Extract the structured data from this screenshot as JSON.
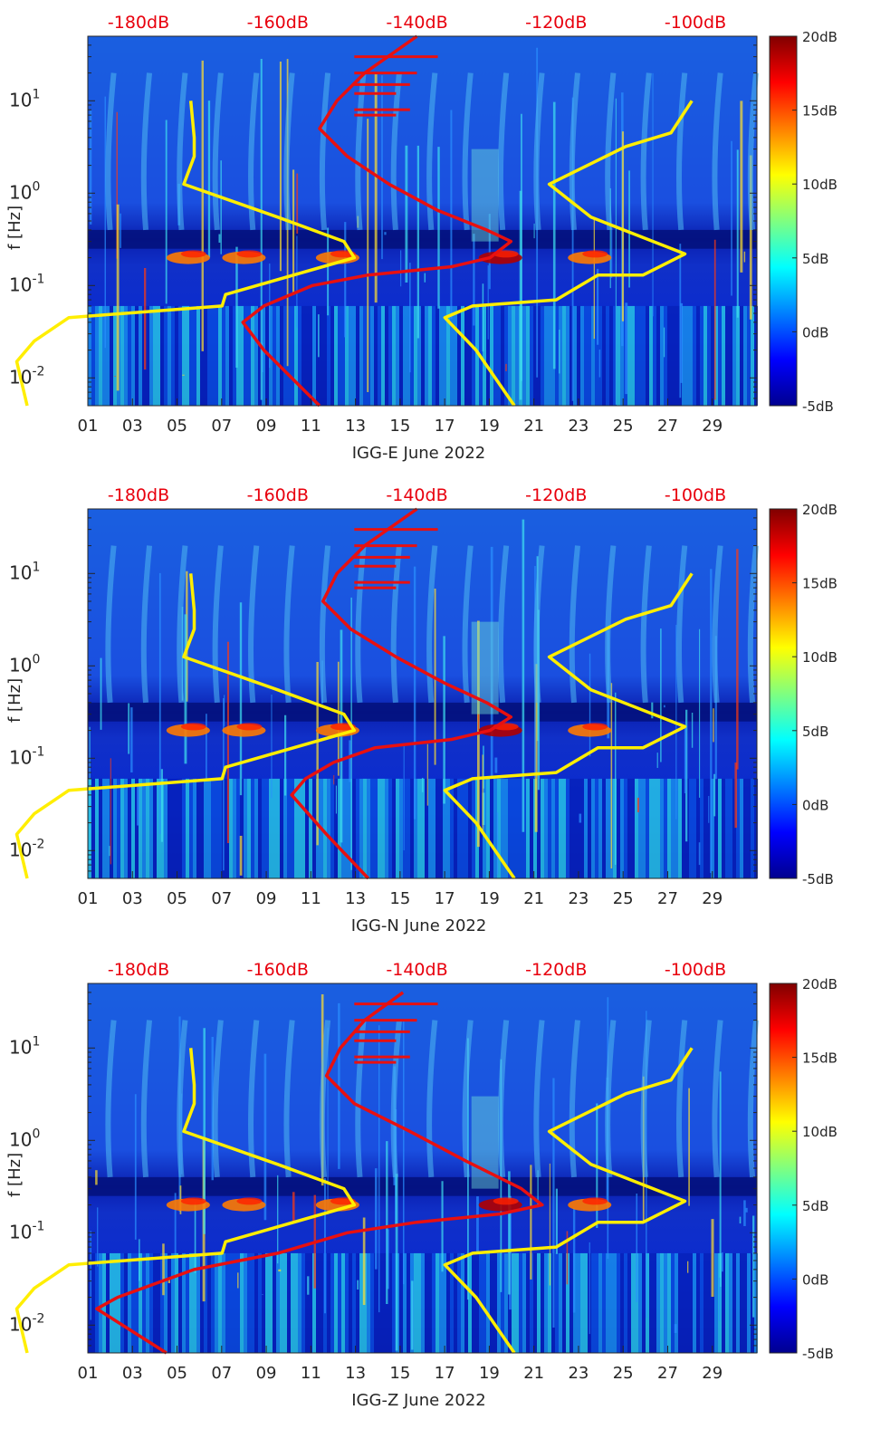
{
  "colors": {
    "yellow_curve": "#ffee00",
    "red_curve": "#e81010",
    "top_label": "#e8000d",
    "spectrogram_low": "#00008f",
    "spectrogram_high": "#800000"
  },
  "chart_data": [
    {
      "type": "heatmap",
      "xlabel": "IGG-E June 2022",
      "ylabel": "f [Hz]",
      "y_scale": "log",
      "xlim": [
        1,
        31
      ],
      "ylim": [
        0.005,
        50
      ],
      "x_ticks": [
        "01",
        "03",
        "05",
        "07",
        "09",
        "11",
        "13",
        "15",
        "17",
        "19",
        "21",
        "23",
        "25",
        "27",
        "29"
      ],
      "y_ticks": [
        "10-2",
        "10-1",
        "100",
        "101"
      ],
      "top_axis_labels": [
        "-180dB",
        "-160dB",
        "-140dB",
        "-120dB",
        "-100dB"
      ],
      "top_axis_db": [
        -180,
        -160,
        -140,
        -120,
        -100
      ],
      "colorbar": {
        "labels": [
          "20dB",
          "15dB",
          "10dB",
          "5dB",
          "0dB",
          "-5dB"
        ],
        "values": [
          20,
          15,
          10,
          5,
          0,
          -5
        ],
        "range": [
          -5,
          20
        ]
      },
      "series": [
        {
          "color": "yellow",
          "axis": "top_db",
          "points": [
            [
              -172.5,
              10
            ],
            [
              -172,
              4
            ],
            [
              -172,
              2.5
            ],
            [
              -173.5,
              1.25
            ],
            [
              -160,
              0.55
            ],
            [
              -150.5,
              0.3
            ],
            [
              -149,
              0.2
            ],
            [
              -167.5,
              0.08
            ],
            [
              -168,
              0.06
            ],
            [
              -190,
              0.045
            ],
            [
              -195,
              0.025
            ],
            [
              -197.5,
              0.015
            ],
            [
              -196,
              0.005
            ]
          ]
        },
        {
          "color": "yellow",
          "axis": "top_db",
          "points": [
            [
              -100.5,
              10
            ],
            [
              -103.5,
              4.5
            ],
            [
              -110,
              3.2
            ],
            [
              -121,
              1.25
            ],
            [
              -115,
              0.55
            ],
            [
              -101.5,
              0.22
            ],
            [
              -107.5,
              0.13
            ],
            [
              -114,
              0.13
            ],
            [
              -120,
              0.07
            ],
            [
              -132,
              0.06
            ],
            [
              -136,
              0.045
            ],
            [
              -131.5,
              0.02
            ],
            [
              -126,
              0.005
            ]
          ]
        },
        {
          "color": "red",
          "axis": "top_db",
          "points": [
            [
              -140,
              50
            ],
            [
              -147.5,
              20
            ],
            [
              -151.5,
              10
            ],
            [
              -154,
              5
            ],
            [
              -150,
              2.5
            ],
            [
              -144,
              1.25
            ],
            [
              -137,
              0.65
            ],
            [
              -130,
              0.4
            ],
            [
              -126.5,
              0.3
            ],
            [
              -129.5,
              0.2
            ],
            [
              -135,
              0.16
            ],
            [
              -147,
              0.13
            ],
            [
              -155,
              0.1
            ],
            [
              -162,
              0.06
            ],
            [
              -165,
              0.04
            ],
            [
              -162,
              0.02
            ],
            [
              -154,
              0.005
            ]
          ]
        }
      ]
    },
    {
      "type": "heatmap",
      "xlabel": "IGG-N June 2022",
      "ylabel": "f [Hz]",
      "y_scale": "log",
      "xlim": [
        1,
        31
      ],
      "ylim": [
        0.005,
        50
      ],
      "x_ticks": [
        "01",
        "03",
        "05",
        "07",
        "09",
        "11",
        "13",
        "15",
        "17",
        "19",
        "21",
        "23",
        "25",
        "27",
        "29"
      ],
      "y_ticks": [
        "10-2",
        "10-1",
        "100",
        "101"
      ],
      "top_axis_labels": [
        "-180dB",
        "-160dB",
        "-140dB",
        "-120dB",
        "-100dB"
      ],
      "top_axis_db": [
        -180,
        -160,
        -140,
        -120,
        -100
      ],
      "colorbar": {
        "labels": [
          "20dB",
          "15dB",
          "10dB",
          "5dB",
          "0dB",
          "-5dB"
        ],
        "values": [
          20,
          15,
          10,
          5,
          0,
          -5
        ],
        "range": [
          -5,
          20
        ]
      },
      "series": [
        {
          "color": "yellow",
          "axis": "top_db",
          "points": [
            [
              -172.5,
              10
            ],
            [
              -172,
              4
            ],
            [
              -172,
              2.5
            ],
            [
              -173.5,
              1.25
            ],
            [
              -160,
              0.55
            ],
            [
              -150.5,
              0.3
            ],
            [
              -149,
              0.2
            ],
            [
              -167.5,
              0.08
            ],
            [
              -168,
              0.06
            ],
            [
              -190,
              0.045
            ],
            [
              -195,
              0.025
            ],
            [
              -197.5,
              0.015
            ],
            [
              -196,
              0.005
            ]
          ]
        },
        {
          "color": "yellow",
          "axis": "top_db",
          "points": [
            [
              -100.5,
              10
            ],
            [
              -103.5,
              4.5
            ],
            [
              -110,
              3.2
            ],
            [
              -121,
              1.25
            ],
            [
              -115,
              0.55
            ],
            [
              -101.5,
              0.22
            ],
            [
              -107.5,
              0.13
            ],
            [
              -114,
              0.13
            ],
            [
              -120,
              0.07
            ],
            [
              -132,
              0.06
            ],
            [
              -136,
              0.045
            ],
            [
              -131.5,
              0.02
            ],
            [
              -126,
              0.005
            ]
          ]
        },
        {
          "color": "red",
          "axis": "top_db",
          "points": [
            [
              -140,
              50
            ],
            [
              -147.5,
              20
            ],
            [
              -151.5,
              10
            ],
            [
              -153.5,
              5
            ],
            [
              -149.5,
              2.5
            ],
            [
              -143,
              1.25
            ],
            [
              -136,
              0.65
            ],
            [
              -130,
              0.4
            ],
            [
              -126.5,
              0.28
            ],
            [
              -129.5,
              0.2
            ],
            [
              -135,
              0.16
            ],
            [
              -146,
              0.13
            ],
            [
              -152,
              0.09
            ],
            [
              -156,
              0.06
            ],
            [
              -158,
              0.04
            ],
            [
              -153,
              0.015
            ],
            [
              -147,
              0.005
            ]
          ]
        }
      ]
    },
    {
      "type": "heatmap",
      "xlabel": "IGG-Z June 2022",
      "ylabel": "f [Hz]",
      "y_scale": "log",
      "xlim": [
        1,
        31
      ],
      "ylim": [
        0.005,
        50
      ],
      "x_ticks": [
        "01",
        "03",
        "05",
        "07",
        "09",
        "11",
        "13",
        "15",
        "17",
        "19",
        "21",
        "23",
        "25",
        "27",
        "29"
      ],
      "y_ticks": [
        "10-2",
        "10-1",
        "100",
        "101"
      ],
      "top_axis_labels": [
        "-180dB",
        "-160dB",
        "-140dB",
        "-120dB",
        "-100dB"
      ],
      "top_axis_db": [
        -180,
        -160,
        -140,
        -120,
        -100
      ],
      "colorbar": {
        "labels": [
          "20dB",
          "15dB",
          "10dB",
          "5dB",
          "0dB",
          "-5dB"
        ],
        "values": [
          20,
          15,
          10,
          5,
          0,
          -5
        ],
        "range": [
          -5,
          20
        ]
      },
      "series": [
        {
          "color": "yellow",
          "axis": "top_db",
          "points": [
            [
              -172.5,
              10
            ],
            [
              -172,
              4
            ],
            [
              -172,
              2.5
            ],
            [
              -173.5,
              1.25
            ],
            [
              -160,
              0.55
            ],
            [
              -150.5,
              0.3
            ],
            [
              -149,
              0.2
            ],
            [
              -167.5,
              0.08
            ],
            [
              -168,
              0.06
            ],
            [
              -190,
              0.045
            ],
            [
              -195,
              0.025
            ],
            [
              -197.5,
              0.015
            ],
            [
              -196,
              0.005
            ]
          ]
        },
        {
          "color": "yellow",
          "axis": "top_db",
          "points": [
            [
              -100.5,
              10
            ],
            [
              -103.5,
              4.5
            ],
            [
              -110,
              3.2
            ],
            [
              -121,
              1.25
            ],
            [
              -115,
              0.55
            ],
            [
              -101.5,
              0.22
            ],
            [
              -107.5,
              0.13
            ],
            [
              -114,
              0.13
            ],
            [
              -120,
              0.07
            ],
            [
              -132,
              0.06
            ],
            [
              -136,
              0.045
            ],
            [
              -131.5,
              0.02
            ],
            [
              -126,
              0.005
            ]
          ]
        },
        {
          "color": "red",
          "axis": "top_db",
          "points": [
            [
              -142,
              40
            ],
            [
              -147.5,
              20
            ],
            [
              -151,
              10
            ],
            [
              -153,
              5
            ],
            [
              -149,
              2.5
            ],
            [
              -141,
              1.25
            ],
            [
              -133,
              0.6
            ],
            [
              -125,
              0.3
            ],
            [
              -122,
              0.2
            ],
            [
              -128,
              0.16
            ],
            [
              -140,
              0.13
            ],
            [
              -150,
              0.1
            ],
            [
              -160,
              0.06
            ],
            [
              -172,
              0.04
            ],
            [
              -183,
              0.02
            ],
            [
              -186,
              0.015
            ],
            [
              -176,
              0.005
            ]
          ]
        }
      ]
    }
  ]
}
